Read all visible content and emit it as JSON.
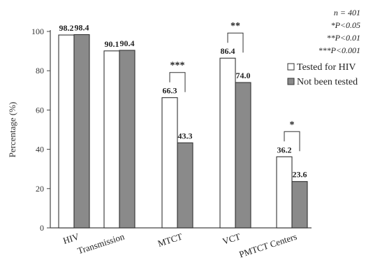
{
  "chart_data": {
    "type": "bar",
    "title": "",
    "xlabel": "",
    "ylabel": "Percentage (%)",
    "ylim": [
      0,
      100
    ],
    "yticks": [
      "0",
      "20",
      "40",
      "60",
      "80",
      "100"
    ],
    "categories": [
      "HIV",
      "Transmission",
      "MTCT",
      "VCT",
      "PMTCT Centers"
    ],
    "series": [
      {
        "name": "Tested for HIV",
        "values": [
          98.2,
          90.1,
          66.3,
          86.4,
          36.2
        ],
        "labels": [
          "98.2",
          "90.1",
          "66.3",
          "86.4",
          "36.2"
        ],
        "color": "#ffffff"
      },
      {
        "name": "Not been tested",
        "values": [
          98.4,
          90.4,
          43.3,
          74.0,
          23.6
        ],
        "labels": [
          "98.4",
          "90.4",
          "43.3",
          "74.0",
          "23.6"
        ],
        "color": "#8a8a8a"
      }
    ],
    "significance": [
      "",
      "",
      "***",
      "**",
      "*"
    ],
    "legend_placement": "right",
    "notes": [
      "n = 401",
      "*P<0.05",
      "**P<0.01",
      "***P<0.001"
    ],
    "grid": false
  }
}
